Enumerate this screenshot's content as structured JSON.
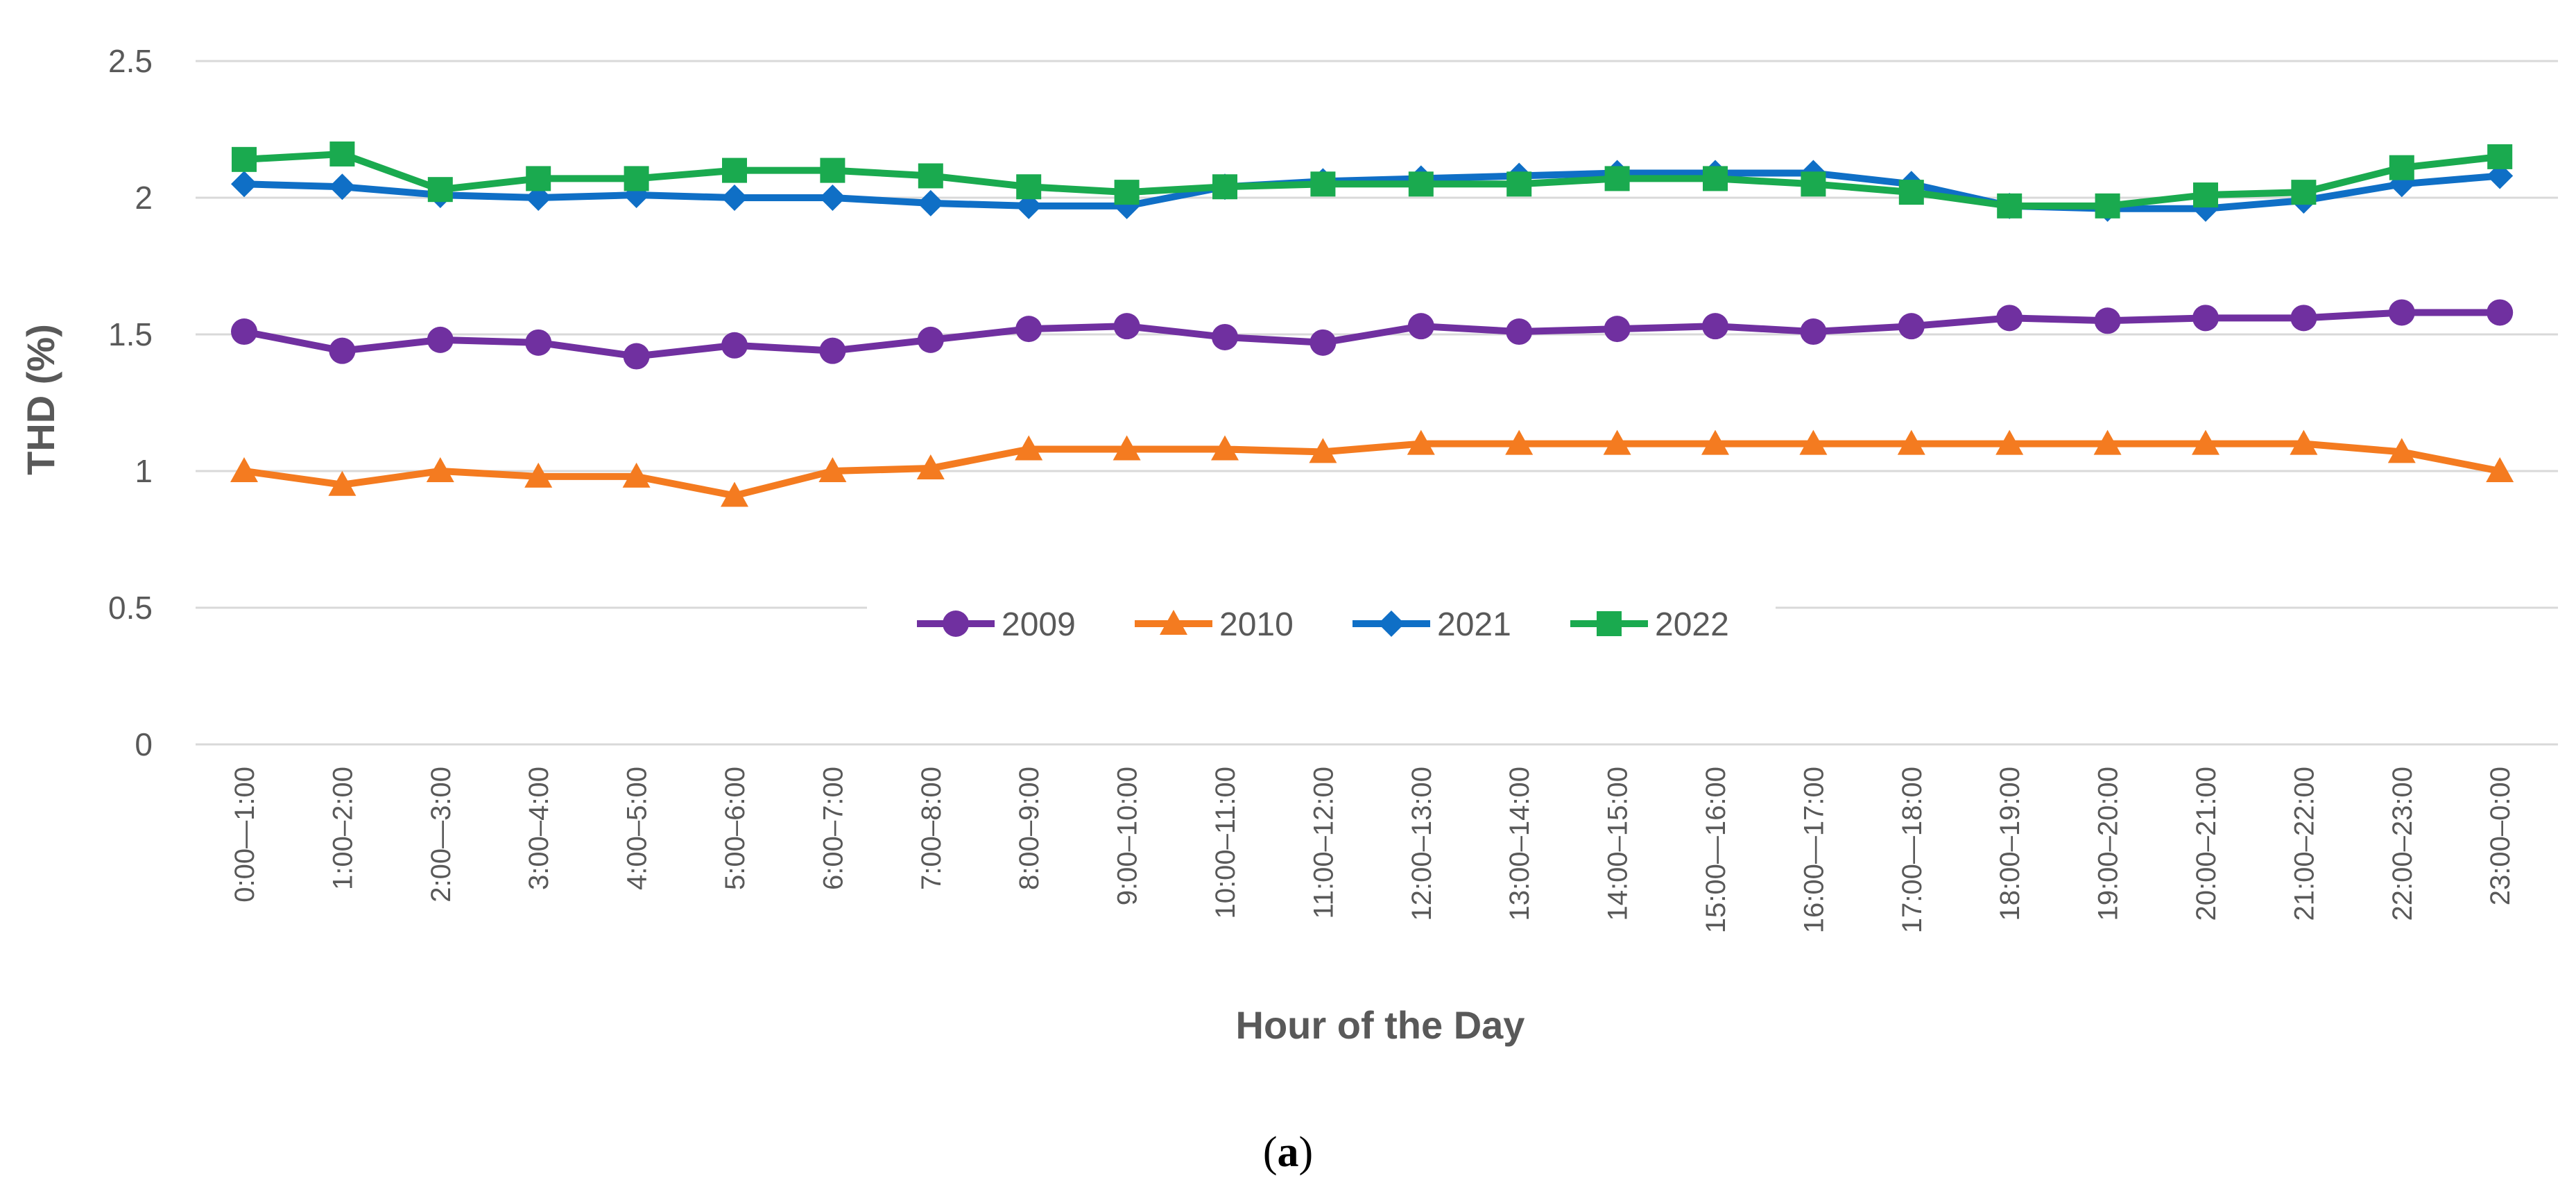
{
  "chart_data": {
    "type": "line",
    "title": "",
    "xlabel": "Hour of the Day",
    "ylabel": "THD (%)",
    "ylim": [
      0,
      2.5
    ],
    "yticks": [
      "0",
      "0.5",
      "1",
      "1.5",
      "2",
      "2.5"
    ],
    "grid": true,
    "legend_position": "center",
    "categories": [
      "0:00—1:00",
      "1:00–2:00",
      "2:00—3:00",
      "3:00–4:00",
      "4:00–5:00",
      "5:00–6:00",
      "6:00–7:00",
      "7:00–8:00",
      "8:00–9:00",
      "9:00–10:00",
      "10:00–11:00",
      "11:00–12:00",
      "12:00–13:00",
      "13:00–14:00",
      "14:00–15:00",
      "15:00—16:00",
      "16:00—17:00",
      "17:00—18:00",
      "18:00–19:00",
      "19:00–20:00",
      "20:00–21:00",
      "21:00–22:00",
      "22:00–23:00",
      "23:00–0:00"
    ],
    "series": [
      {
        "name": "2009",
        "color": "#7030a0",
        "marker": "circle",
        "values": [
          1.51,
          1.44,
          1.48,
          1.47,
          1.42,
          1.46,
          1.44,
          1.48,
          1.52,
          1.53,
          1.49,
          1.47,
          1.53,
          1.51,
          1.52,
          1.53,
          1.51,
          1.53,
          1.56,
          1.55,
          1.56,
          1.56,
          1.58,
          1.58
        ]
      },
      {
        "name": "2010",
        "color": "#f47b20",
        "marker": "triangle",
        "values": [
          1.0,
          0.95,
          1.0,
          0.98,
          0.98,
          0.91,
          1.0,
          1.01,
          1.08,
          1.08,
          1.08,
          1.07,
          1.1,
          1.1,
          1.1,
          1.1,
          1.1,
          1.1,
          1.1,
          1.1,
          1.1,
          1.1,
          1.07,
          1.0
        ]
      },
      {
        "name": "2021",
        "color": "#0f6fc6",
        "marker": "diamond",
        "values": [
          2.05,
          2.04,
          2.01,
          2.0,
          2.01,
          2.0,
          2.0,
          1.98,
          1.97,
          1.97,
          2.04,
          2.06,
          2.07,
          2.08,
          2.09,
          2.09,
          2.09,
          2.05,
          1.97,
          1.96,
          1.96,
          1.99,
          2.05,
          2.08
        ]
      },
      {
        "name": "2022",
        "color": "#1aaa4f",
        "marker": "square",
        "values": [
          2.14,
          2.16,
          2.03,
          2.07,
          2.07,
          2.1,
          2.1,
          2.08,
          2.04,
          2.02,
          2.04,
          2.05,
          2.05,
          2.05,
          2.07,
          2.07,
          2.05,
          2.02,
          1.97,
          1.97,
          2.01,
          2.02,
          2.11,
          2.15
        ]
      }
    ]
  },
  "caption": {
    "open": "(",
    "letter": "a",
    "close": ")"
  }
}
